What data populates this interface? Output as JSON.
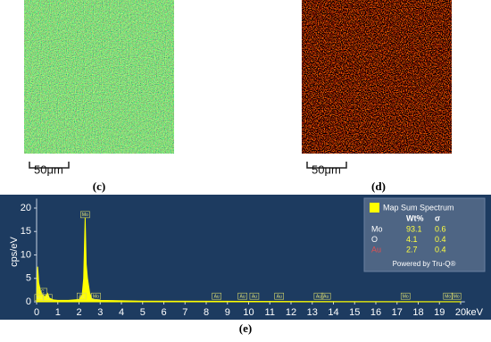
{
  "figure": {
    "panel_c": {
      "label": "(c)",
      "scale": "50μm"
    },
    "panel_d": {
      "label": "(d)",
      "scale": "50μm"
    },
    "panel_e": {
      "label": "(e)"
    }
  },
  "chart_data": {
    "type": "area",
    "color": "#ffff00",
    "background": "#1d3b60",
    "ylabel": "cps/eV",
    "xunit": "keV",
    "x": [
      0,
      0.05,
      0.1,
      0.2,
      0.3,
      0.4,
      0.52,
      0.6,
      0.8,
      1.0,
      1.5,
      2.0,
      2.15,
      2.22,
      2.29,
      2.34,
      2.4,
      2.5,
      2.6,
      2.8,
      3.0,
      5,
      10,
      15,
      20
    ],
    "values": [
      0,
      7.5,
      4,
      2,
      1.3,
      1.1,
      1.8,
      0.8,
      0.4,
      0.3,
      0.3,
      0.5,
      1.5,
      5,
      18,
      8,
      5,
      2,
      0.7,
      0.4,
      0.3,
      0.15,
      0.1,
      0.05,
      0.03
    ],
    "xlim": [
      0,
      20.2
    ],
    "ylim": [
      0,
      22
    ],
    "xticks": [
      0,
      1,
      2,
      3,
      4,
      5,
      6,
      7,
      8,
      9,
      10,
      11,
      12,
      13,
      14,
      15,
      16,
      17,
      18,
      19,
      20
    ],
    "yticks": [
      0,
      5,
      10,
      15,
      20
    ],
    "annotations": [
      {
        "x": 0.28,
        "y": 2.2,
        "text": "C"
      },
      {
        "x": 0.52,
        "y": 0.9,
        "text": "O"
      },
      {
        "x": 0.12,
        "y": 0.9,
        "text": "Mo"
      },
      {
        "x": 2.12,
        "y": 1.2,
        "text": "Au"
      },
      {
        "x": 2.29,
        "y": 18.6,
        "text": "Mo"
      },
      {
        "x": 2.8,
        "y": 1.2,
        "text": "Mo"
      },
      {
        "x": 8.49,
        "y": 1.2,
        "text": "Au"
      },
      {
        "x": 9.71,
        "y": 1.2,
        "text": "Au"
      },
      {
        "x": 10.27,
        "y": 1.2,
        "text": "Au"
      },
      {
        "x": 11.44,
        "y": 1.2,
        "text": "Au"
      },
      {
        "x": 13.3,
        "y": 1.2,
        "text": "Au"
      },
      {
        "x": 13.65,
        "y": 1.2,
        "text": "Au"
      },
      {
        "x": 17.4,
        "y": 1.2,
        "text": "Mo"
      },
      {
        "x": 19.4,
        "y": 1.2,
        "text": "Mo"
      },
      {
        "x": 19.8,
        "y": 1.2,
        "text": "Mo"
      }
    ],
    "legend": {
      "title": "Map Sum Spectrum",
      "columns": [
        "Wt%",
        "σ"
      ],
      "rows": [
        {
          "element": "Mo",
          "color": "#ffffff",
          "wt": 93.1,
          "sigma": 0.6
        },
        {
          "element": "O",
          "color": "#ffffff",
          "wt": 4.1,
          "sigma": 0.4
        },
        {
          "element": "Au",
          "color": "#e05050",
          "wt": 2.7,
          "sigma": 0.4
        }
      ],
      "footer": "Powered by Tru-Q®"
    }
  }
}
